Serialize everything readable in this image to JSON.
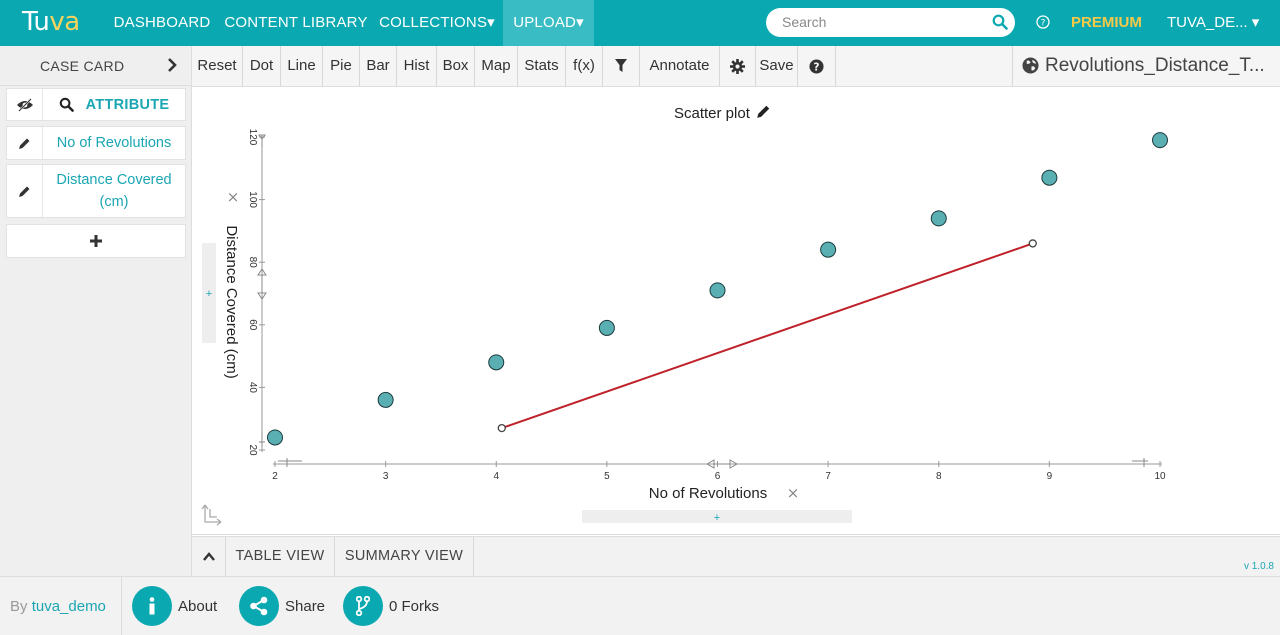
{
  "nav": {
    "logo_main": "Tu",
    "logo_accent": "va",
    "items": [
      "DASHBOARD",
      "CONTENT LIBRARY",
      "COLLECTIONS▾",
      "UPLOAD▾"
    ],
    "search_placeholder": "Search",
    "premium": "PREMIUM",
    "user": "TUVA_DE... ▾"
  },
  "left_panel": {
    "title": "CASE CARD",
    "attribute_header": "ATTRIBUTE",
    "attributes": [
      "No of Revolutions",
      "Distance Covered\n(cm)"
    ]
  },
  "toolbar": {
    "buttons": [
      "Reset",
      "Dot",
      "Line",
      "Pie",
      "Bar",
      "Hist",
      "Box",
      "Map",
      "Stats",
      "f(x)",
      "",
      "Annotate",
      "",
      "Save",
      ""
    ],
    "dataset_title": "Revolutions_Distance_T..."
  },
  "graph": {
    "title": "Scatter plot"
  },
  "views": {
    "table": "TABLE VIEW",
    "summary": "SUMMARY VIEW",
    "version": "v 1.0.8"
  },
  "footer": {
    "by_prefix": "By ",
    "by_user": "tuva_demo",
    "about": "About",
    "share": "Share",
    "forks": "0 Forks"
  },
  "colors": {
    "brand": "#0aa8b0",
    "point_fill": "#5aafb3",
    "movable_line": "#c0222b",
    "premium": "#f7c948"
  },
  "chart_data": {
    "type": "scatter",
    "title": "Scatter plot",
    "xlabel": "No of Revolutions",
    "ylabel": "Distance Covered (cm)",
    "xlim": [
      2,
      10
    ],
    "ylim": [
      20,
      120
    ],
    "xticks": [
      2,
      3,
      4,
      5,
      6,
      7,
      8,
      9,
      10
    ],
    "yticks": [
      20,
      40,
      60,
      80,
      100,
      120
    ],
    "points": [
      {
        "x": 2,
        "y": 24
      },
      {
        "x": 3,
        "y": 36
      },
      {
        "x": 4,
        "y": 48
      },
      {
        "x": 5,
        "y": 59
      },
      {
        "x": 6,
        "y": 71
      },
      {
        "x": 7,
        "y": 84
      },
      {
        "x": 8,
        "y": 94
      },
      {
        "x": 9,
        "y": 107
      },
      {
        "x": 10,
        "y": 119
      }
    ],
    "movable_line": {
      "x1": 4.05,
      "y1": 27,
      "x2": 8.85,
      "y2": 86
    }
  }
}
